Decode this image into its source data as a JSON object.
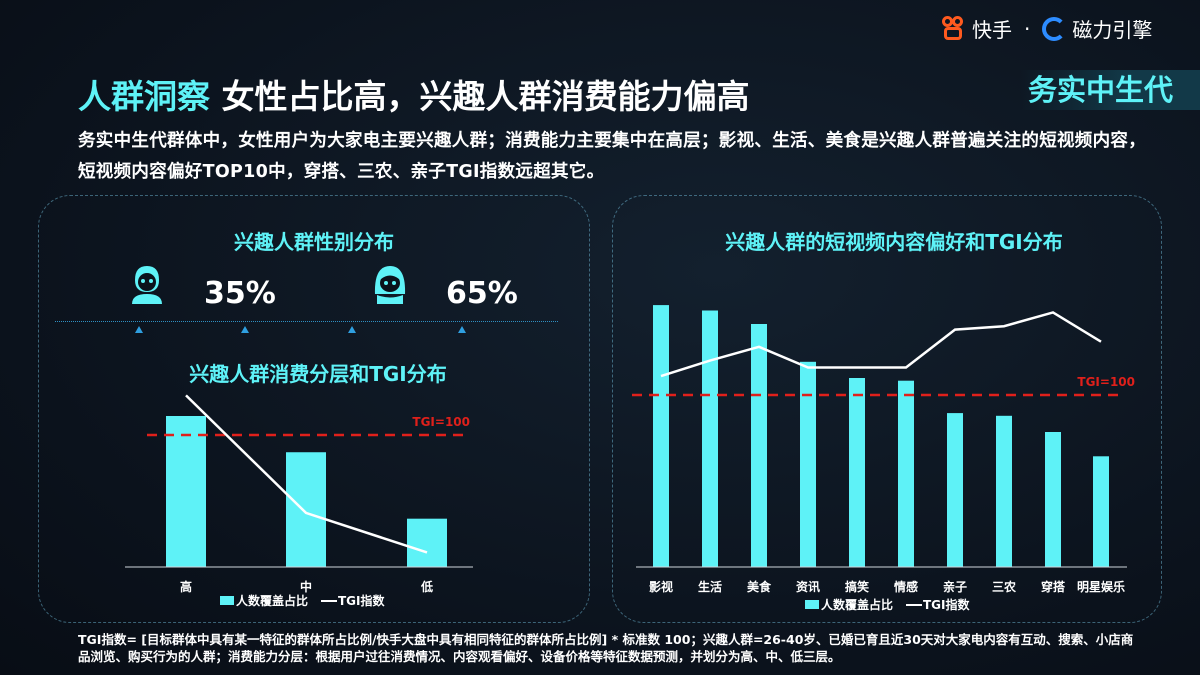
{
  "header": {
    "brand_kuaishou": "快手",
    "separator": "·",
    "brand_cili": "磁力引擎",
    "title_highlight": "人群洞察",
    "title_main": "女性占比高，兴趣人群消费能力偏高",
    "segment_tag": "务实中生代"
  },
  "description": "务实中生代群体中，女性用户为大家电主要兴趣人群；消费能力主要集中在高层；影视、生活、美食是兴趣人群普遍关注的短视频内容，短视频内容偏好TOP10中，穿搭、三农、亲子TGI指数远超其它。",
  "gender": {
    "title": "兴趣人群性别分布",
    "male_pct": "35%",
    "female_pct": "65%",
    "male_icon": "male-user-icon",
    "female_icon": "female-user-icon"
  },
  "colors": {
    "accent": "#5ef2f7",
    "bar": "#5ef2f7",
    "tgi_line": "#ffffff",
    "reference": "#e0201b",
    "background": "#0b121c"
  },
  "chart_data": [
    {
      "type": "bar",
      "title": "兴趣人群消费分层和TGI分布",
      "categories": [
        "高",
        "中",
        "低"
      ],
      "series": [
        {
          "name": "人数覆盖占比",
          "type": "bar",
          "values": [
            50,
            38,
            16
          ]
        },
        {
          "name": "TGI指数",
          "type": "line",
          "values": [
            130,
            41,
            11
          ]
        }
      ],
      "reference_line": {
        "label": "TGI=100",
        "value": 100
      },
      "legend": "bottom",
      "grid": false
    },
    {
      "type": "bar",
      "title": "兴趣人群的短视频内容偏好和TGI分布",
      "categories": [
        "影视",
        "生活",
        "美食",
        "资讯",
        "搞笑",
        "情感",
        "亲子",
        "三农",
        "穿搭",
        "明星娱乐"
      ],
      "series": [
        {
          "name": "人数覆盖占比",
          "type": "bar",
          "values": [
            97,
            95,
            90,
            76,
            70,
            69,
            57,
            56,
            50,
            41
          ]
        },
        {
          "name": "TGI指数",
          "type": "line",
          "values": [
            111,
            120,
            128,
            116,
            116,
            116,
            138,
            140,
            148,
            131
          ]
        }
      ],
      "reference_line": {
        "label": "TGI=100",
        "value": 100
      },
      "legend": "bottom",
      "grid": false
    }
  ],
  "footnote": "TGI指数= [目标群体中具有某一特征的群体所占比例/快手大盘中具有相同特征的群体所占比例] * 标准数 100；兴趣人群=26-40岁、已婚已育且近30天对大家电内容有互动、搜索、小店商品浏览、购买行为的人群；消费能力分层：根据用户过往消费情况、内容观看偏好、设备价格等特征数据预测，并划分为高、中、低三层。"
}
